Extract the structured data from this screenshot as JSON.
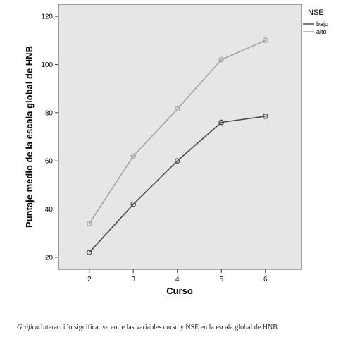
{
  "chart_data": {
    "type": "line",
    "xlabel": "Curso",
    "ylabel": "Puntaje medio de la escala global de HNB",
    "x": [
      2,
      3,
      4,
      5,
      6
    ],
    "ylim": [
      15,
      125
    ],
    "yticks": [
      20,
      40,
      60,
      80,
      100,
      120
    ],
    "grid": false,
    "legend_title": "NSE",
    "legend_position": "right",
    "series": [
      {
        "name": "bajo",
        "color": "#4a4a4a",
        "values": [
          22,
          42,
          60,
          76,
          78.5
        ]
      },
      {
        "name": "alto",
        "color": "#a3a3a3",
        "values": [
          34,
          62,
          81.5,
          102,
          110
        ]
      }
    ]
  },
  "caption": {
    "lead": "Gráfica",
    "text": ".Interacción significativa entre las variables curso y NSE en la escala global de HNB"
  },
  "colors": {
    "plot_background": "#e6e6e6",
    "page_background": "#ffffff"
  }
}
